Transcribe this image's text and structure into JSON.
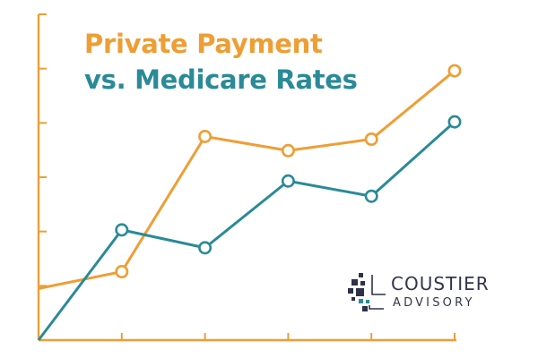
{
  "colors": {
    "private": "#EE9E34",
    "medicare": "#2A8A98",
    "axis": "#EE9E34",
    "logo_text": "#33364A",
    "logo_mark": "#2E3148",
    "logo_accent": "#2A8A98"
  },
  "title": {
    "line1": "Private Payment",
    "line2": "vs. Medicare Rates"
  },
  "logo": {
    "name": "COUSTIER",
    "sub": "ADVISORY"
  },
  "chart_data": {
    "type": "line",
    "x": [
      0,
      1,
      2,
      3,
      4,
      5
    ],
    "ylim": [
      0,
      6
    ],
    "grid": false,
    "series": [
      {
        "key": "private",
        "values": [
          0.95,
          1.26,
          3.75,
          3.49,
          3.7,
          4.96
        ],
        "color": "#EE9E34"
      },
      {
        "key": "medicare",
        "values": [
          0,
          2.03,
          1.7,
          2.93,
          2.65,
          4.02
        ],
        "color": "#2A8A98"
      }
    ]
  }
}
